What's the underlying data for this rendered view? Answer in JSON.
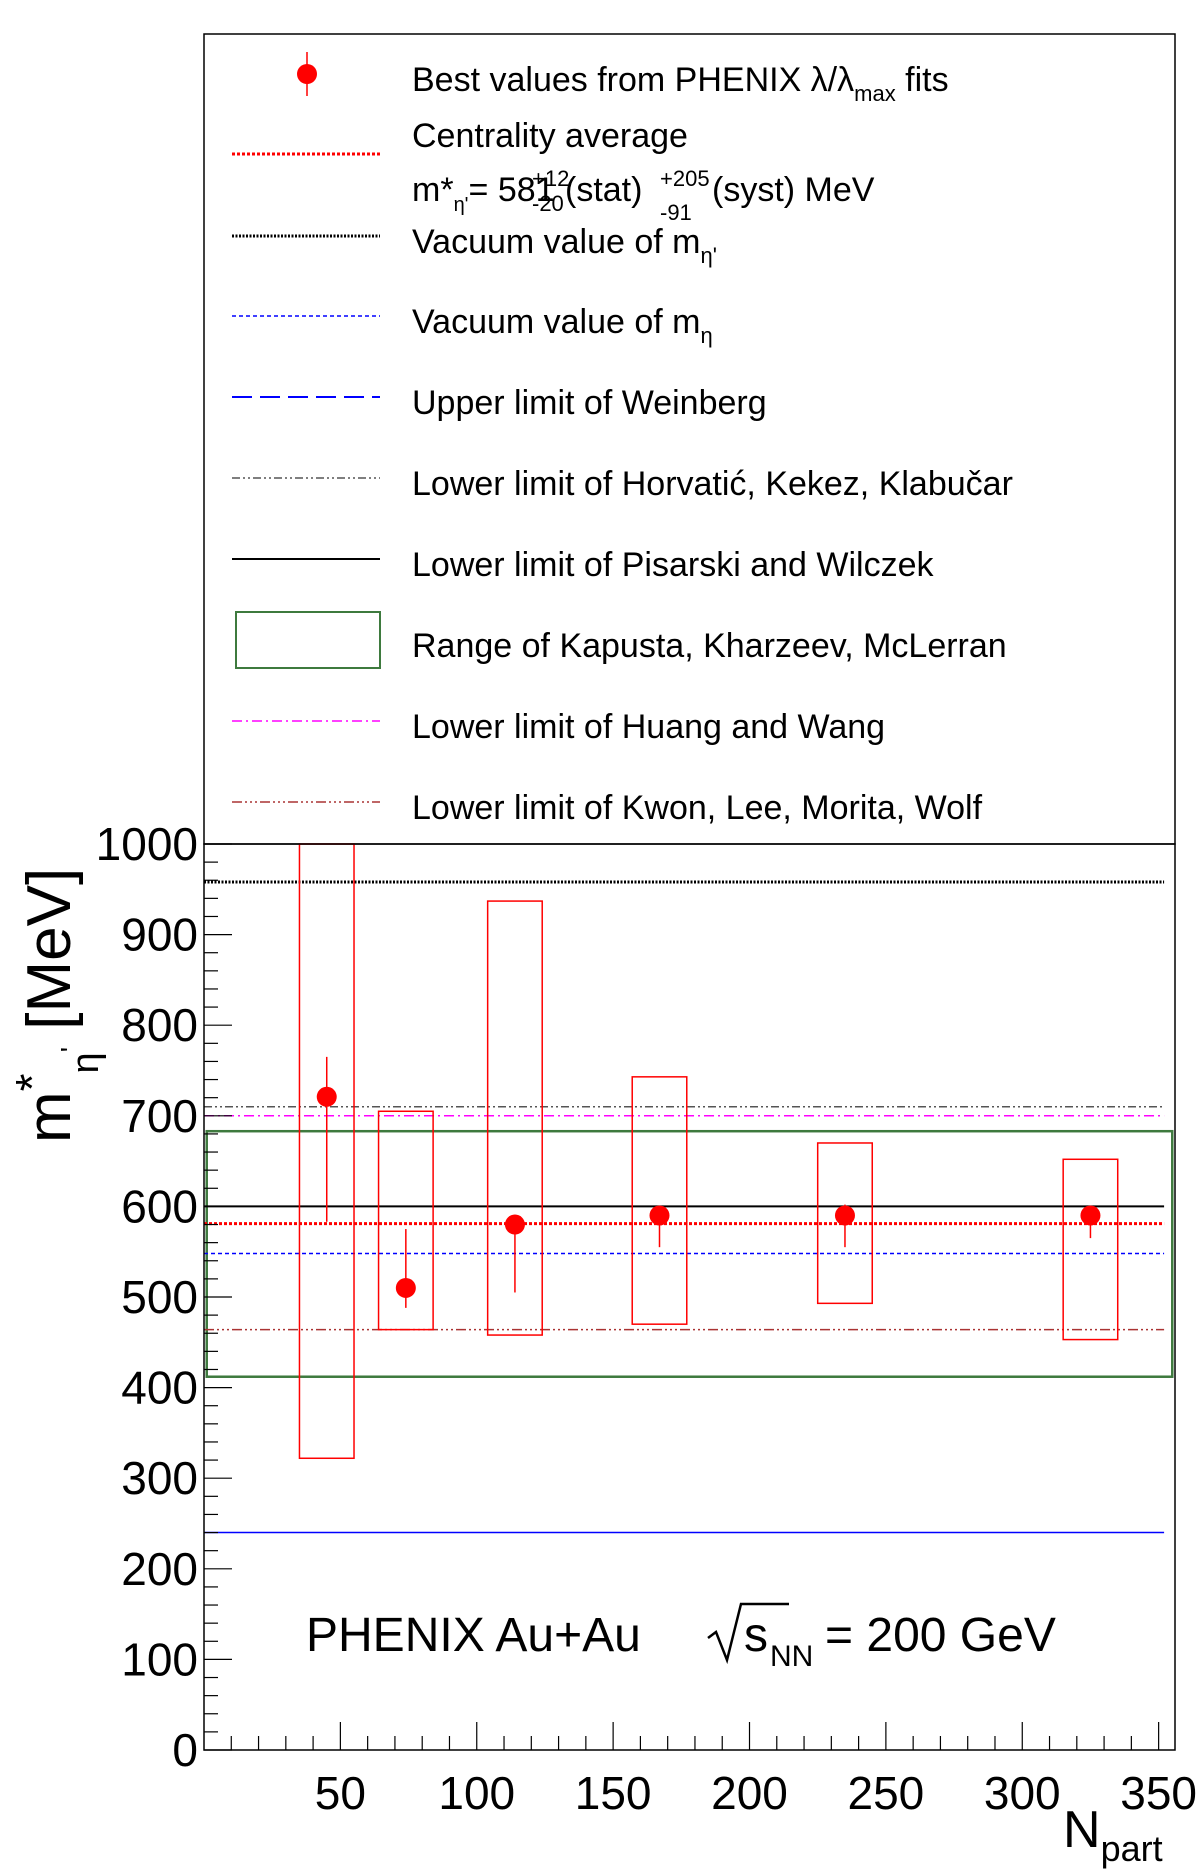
{
  "chart_data": {
    "type": "scatter",
    "title": "",
    "annotation": {
      "prefix": "PHENIX Au+Au ",
      "sqrt_base": "s",
      "sqrt_sub": "NN",
      "suffix": " = 200 GeV"
    },
    "xlabel": {
      "main": "N",
      "sub": "part"
    },
    "ylabel": {
      "main": "m",
      "sup": "*",
      "sub1": "η",
      "sub2": "'",
      "unit": " [MeV]"
    },
    "xlim": [
      0,
      356
    ],
    "ylim": [
      0,
      1000
    ],
    "x_ticks": [
      "50",
      "100",
      "150",
      "200",
      "250",
      "300",
      "350"
    ],
    "y_ticks": [
      "0",
      "100",
      "200",
      "300",
      "400",
      "500",
      "600",
      "700",
      "800",
      "900",
      "1000"
    ],
    "series": [
      {
        "name": "Best values from PHENIX λ/λmax fits",
        "points": [
          {
            "x": 45,
            "y": 721,
            "stat_lo": 583,
            "stat_hi": 765,
            "syst_lo": 322,
            "syst_hi": 1000
          },
          {
            "x": 74,
            "y": 510,
            "stat_lo": 488,
            "stat_hi": 575,
            "syst_lo": 464,
            "syst_hi": 705
          },
          {
            "x": 114,
            "y": 580,
            "stat_lo": 505,
            "stat_hi": 590,
            "syst_lo": 458,
            "syst_hi": 937
          },
          {
            "x": 167,
            "y": 590,
            "stat_lo": 555,
            "stat_hi": 600,
            "syst_lo": 470,
            "syst_hi": 743
          },
          {
            "x": 235,
            "y": 590,
            "stat_lo": 555,
            "stat_hi": 602,
            "syst_lo": 493,
            "syst_hi": 670
          },
          {
            "x": 325,
            "y": 590,
            "stat_lo": 565,
            "stat_hi": 598,
            "syst_lo": 453,
            "syst_hi": 652
          }
        ]
      }
    ],
    "reference_lines": [
      {
        "key": "centrality_average",
        "y": 581,
        "x_range": [
          0,
          352
        ],
        "color": "#ff0000"
      },
      {
        "key": "vacuum_eta_prime",
        "y": 958,
        "x_range": [
          0,
          352
        ],
        "color": "#000000"
      },
      {
        "key": "vacuum_eta",
        "y": 548,
        "x_range": [
          0,
          352
        ],
        "color": "#0000ff"
      },
      {
        "key": "weinberg",
        "y": 240,
        "x_range": [
          0,
          352
        ],
        "color": "#0000ff"
      },
      {
        "key": "horvatic",
        "y": 710,
        "x_range": [
          0,
          352
        ],
        "color": "#555555"
      },
      {
        "key": "pisarski",
        "y": 600,
        "x_range": [
          0,
          352
        ],
        "color": "#000000"
      },
      {
        "key": "huang",
        "y": 700,
        "x_range": [
          0,
          352
        ],
        "color": "#ff00ff"
      },
      {
        "key": "kwon",
        "y": 464,
        "x_range": [
          0,
          352
        ],
        "color": "#aa3333"
      }
    ],
    "range_box": {
      "key": "kapusta",
      "y_low": 412,
      "y_high": 683,
      "x_range": [
        1,
        355
      ],
      "color": "#3e7a3e"
    },
    "legend": {
      "placement": "top",
      "entries": {
        "best": {
          "text": "Best values from PHENIX λ/λ",
          "sub": "max",
          "suffix": " fits"
        },
        "centrality": {
          "line1": "Centrality average"
        },
        "mass_value": {
          "pre": "m*",
          "sub_eta": "η'",
          "eq": "= 581",
          "stat_up": "+12",
          "stat_down": "-20",
          "stat_label": "(stat)",
          "syst_up": "+205",
          "syst_down": "-91",
          "syst_label": "(syst) MeV"
        },
        "vacuum_eta_prime": {
          "text": "Vacuum value of m",
          "sub": "η'"
        },
        "vacuum_eta": {
          "text": "Vacuum value of m",
          "sub": "η"
        },
        "weinberg": {
          "text": "Upper limit of Weinberg"
        },
        "horvatic": {
          "text": "Lower limit of Horvatić, Kekez, Klabučar"
        },
        "pisarski": {
          "text": "Lower limit of Pisarski and Wilczek"
        },
        "kapusta": {
          "text": "Range of Kapusta, Kharzeev, McLerran"
        },
        "huang": {
          "text": "Lower limit of Huang and Wang"
        },
        "kwon": {
          "text": "Lower limit of Kwon, Lee, Morita, Wolf"
        }
      }
    },
    "colors": {
      "points": "#ff0000",
      "syst_box": "#ff0000",
      "frame": "#000000"
    },
    "grid": false
  }
}
